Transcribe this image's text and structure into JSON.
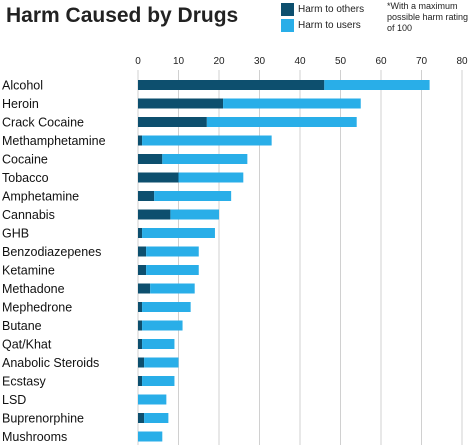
{
  "chart_data": {
    "type": "bar",
    "stacked": true,
    "orientation": "horizontal",
    "title": "Harm Caused by Drugs",
    "footnote": "*With a maximum possible harm rating of 100",
    "xlim": [
      0,
      80
    ],
    "xticks": [
      0,
      10,
      20,
      30,
      40,
      50,
      60,
      70,
      80
    ],
    "x_axis_position": "top",
    "grid": true,
    "legend_position": "top",
    "categories": [
      "Alcohol",
      "Heroin",
      "Crack Cocaine",
      "Methamphetamine",
      "Cocaine",
      "Tobacco",
      "Amphetamine",
      "Cannabis",
      "GHB",
      "Benzodiazepenes",
      "Ketamine",
      "Methadone",
      "Mephedrone",
      "Butane",
      "Qat/Khat",
      "Anabolic Steroids",
      "Ecstasy",
      "LSD",
      "Buprenorphine",
      "Mushrooms"
    ],
    "series": [
      {
        "name": "Harm to others",
        "color": "#0d4f6e",
        "values": [
          46,
          21,
          17,
          1,
          6,
          10,
          4,
          8,
          1,
          2,
          2,
          3,
          1,
          1,
          1,
          1.5,
          1,
          0,
          1.5,
          0
        ]
      },
      {
        "name": "Harm to users",
        "color": "#29aee8",
        "values": [
          26,
          34,
          37,
          32,
          21,
          16,
          19,
          12,
          18,
          13,
          13,
          11,
          12,
          10,
          8,
          8.5,
          8,
          7,
          6,
          6
        ]
      }
    ]
  }
}
